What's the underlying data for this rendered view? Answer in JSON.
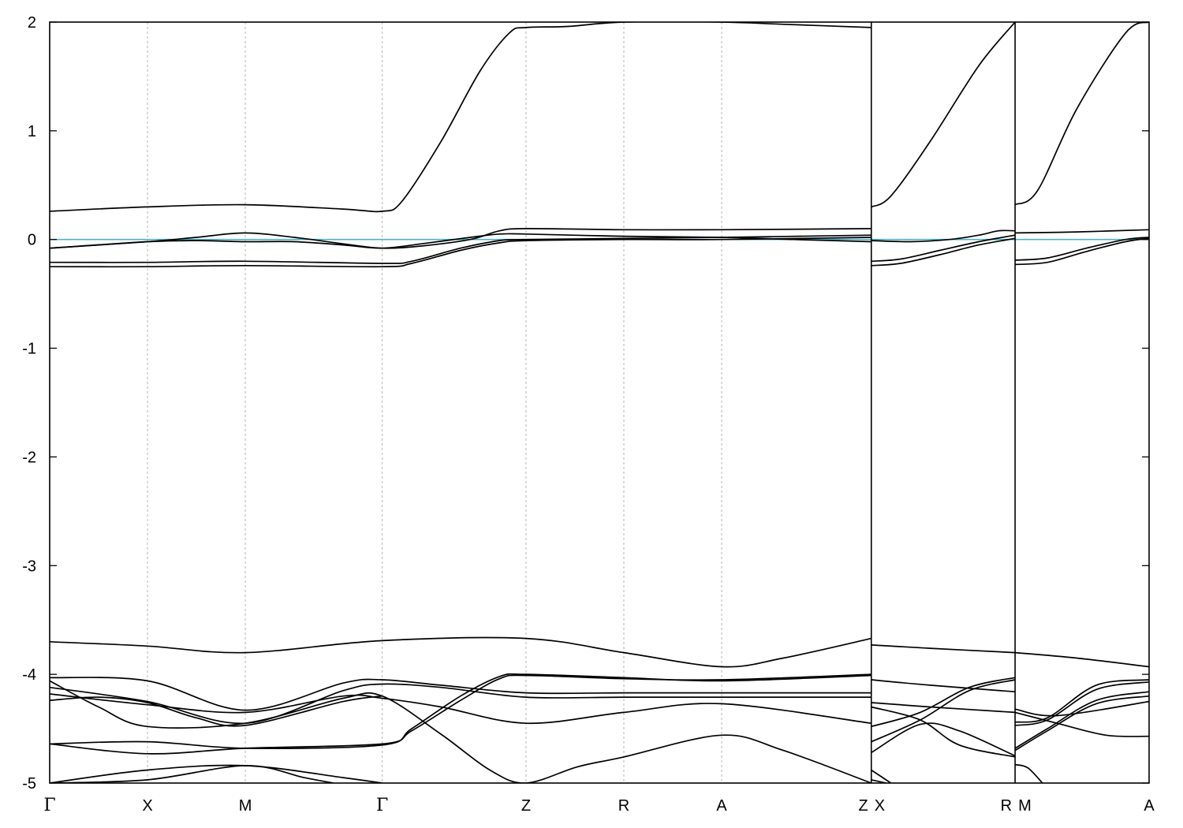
{
  "chart_data": {
    "type": "line",
    "title": "",
    "xlabel": "",
    "ylabel": "",
    "ylim": [
      -5,
      2
    ],
    "yticks": [
      -5,
      -4,
      -3,
      -2,
      -1,
      0,
      1,
      2
    ],
    "xlim": [
      0,
      11.24
    ],
    "grid": "vertical dashed lines at high-symmetry points",
    "fermi_level": {
      "value": 0,
      "color": "#4fb0c6"
    },
    "band_color": "#000000",
    "segment_breaks": [
      8.4,
      9.87
    ],
    "kpoints": [
      {
        "x": 0,
        "label": "Γ"
      },
      {
        "x": 1.0,
        "label": "X"
      },
      {
        "x": 2.0,
        "label": "M"
      },
      {
        "x": 3.4,
        "label": "Γ"
      },
      {
        "x": 4.87,
        "label": "Z"
      },
      {
        "x": 5.87,
        "label": "R"
      },
      {
        "x": 6.87,
        "label": "A"
      },
      {
        "x": 8.4,
        "label": "Z"
      },
      {
        "x": 8.4,
        "label": "X"
      },
      {
        "x": 9.87,
        "label": "R"
      },
      {
        "x": 9.87,
        "label": "M"
      },
      {
        "x": 11.24,
        "label": "A"
      }
    ],
    "series": [
      {
        "points": [
          [
            0,
            0.26
          ],
          [
            1,
            0.3
          ],
          [
            2,
            0.32
          ],
          [
            3.0,
            0.28
          ],
          [
            3.4,
            0.26
          ],
          [
            3.6,
            0.35
          ],
          [
            4.0,
            0.9
          ],
          [
            4.4,
            1.55
          ],
          [
            4.7,
            1.9
          ],
          [
            4.87,
            1.95
          ],
          [
            5.3,
            1.96
          ],
          [
            5.87,
            2.0
          ],
          [
            6.87,
            2.0
          ],
          [
            7.5,
            1.98
          ],
          [
            8.4,
            1.95
          ]
        ]
      },
      {
        "points": [
          [
            8.4,
            0.3
          ],
          [
            8.6,
            0.4
          ],
          [
            9.0,
            0.9
          ],
          [
            9.5,
            1.6
          ],
          [
            9.87,
            2.0
          ]
        ]
      },
      {
        "points": [
          [
            9.87,
            0.32
          ],
          [
            10.1,
            0.45
          ],
          [
            10.5,
            1.2
          ],
          [
            11.0,
            1.9
          ],
          [
            11.24,
            2.0
          ]
        ]
      },
      {
        "points": [
          [
            0,
            -0.08
          ],
          [
            1,
            -0.02
          ],
          [
            1.5,
            0.02
          ],
          [
            2.0,
            0.06
          ],
          [
            2.5,
            0.02
          ],
          [
            3.0,
            -0.04
          ],
          [
            3.4,
            -0.08
          ],
          [
            3.8,
            -0.06
          ],
          [
            4.3,
            0.0
          ],
          [
            4.6,
            0.08
          ],
          [
            4.87,
            0.1
          ],
          [
            5.87,
            0.09
          ],
          [
            6.87,
            0.09
          ],
          [
            8.4,
            0.1
          ]
        ]
      },
      {
        "points": [
          [
            0,
            -0.08
          ],
          [
            1,
            -0.02
          ],
          [
            1.5,
            -0.01
          ],
          [
            2.0,
            -0.02
          ],
          [
            2.5,
            -0.02
          ],
          [
            3.0,
            -0.05
          ],
          [
            3.4,
            -0.08
          ],
          [
            3.8,
            -0.04
          ],
          [
            4.3,
            0.02
          ],
          [
            4.6,
            0.05
          ],
          [
            4.87,
            0.05
          ],
          [
            5.87,
            0.03
          ],
          [
            6.87,
            0.02
          ],
          [
            7.6,
            0.0
          ],
          [
            8.4,
            -0.02
          ]
        ]
      },
      {
        "points": [
          [
            0,
            -0.21
          ],
          [
            1,
            -0.21
          ],
          [
            2,
            -0.2
          ],
          [
            3.4,
            -0.22
          ],
          [
            3.7,
            -0.2
          ],
          [
            4.2,
            -0.08
          ],
          [
            4.6,
            -0.01
          ],
          [
            4.87,
            0.0
          ],
          [
            5.87,
            0.01
          ],
          [
            6.87,
            0.02
          ],
          [
            8.4,
            0.04
          ]
        ]
      },
      {
        "points": [
          [
            0,
            -0.25
          ],
          [
            1,
            -0.25
          ],
          [
            2,
            -0.24
          ],
          [
            3.4,
            -0.25
          ],
          [
            3.7,
            -0.22
          ],
          [
            4.2,
            -0.1
          ],
          [
            4.6,
            -0.03
          ],
          [
            4.87,
            -0.01
          ],
          [
            5.87,
            0.0
          ],
          [
            6.87,
            0.0
          ],
          [
            8.4,
            0.02
          ]
        ]
      },
      {
        "points": [
          [
            8.4,
            -0.01
          ],
          [
            8.8,
            -0.02
          ],
          [
            9.2,
            0.0
          ],
          [
            9.5,
            0.04
          ],
          [
            9.7,
            0.08
          ],
          [
            9.87,
            0.08
          ]
        ]
      },
      {
        "points": [
          [
            8.4,
            -0.2
          ],
          [
            8.7,
            -0.18
          ],
          [
            9.1,
            -0.1
          ],
          [
            9.5,
            -0.02
          ],
          [
            9.87,
            0.04
          ]
        ]
      },
      {
        "points": [
          [
            8.4,
            -0.24
          ],
          [
            8.7,
            -0.22
          ],
          [
            9.1,
            -0.14
          ],
          [
            9.5,
            -0.05
          ],
          [
            9.87,
            0.01
          ]
        ]
      },
      {
        "points": [
          [
            9.87,
            0.06
          ],
          [
            10.5,
            0.07
          ],
          [
            11.24,
            0.09
          ]
        ]
      },
      {
        "points": [
          [
            9.87,
            -0.19
          ],
          [
            10.2,
            -0.17
          ],
          [
            10.6,
            -0.08
          ],
          [
            11.0,
            0.0
          ],
          [
            11.24,
            0.02
          ]
        ]
      },
      {
        "points": [
          [
            9.87,
            -0.23
          ],
          [
            10.2,
            -0.21
          ],
          [
            10.6,
            -0.11
          ],
          [
            11.0,
            -0.02
          ],
          [
            11.24,
            0.01
          ]
        ]
      },
      {
        "points": [
          [
            0,
            -3.7
          ],
          [
            1,
            -3.74
          ],
          [
            2,
            -3.8
          ],
          [
            3.4,
            -3.69
          ],
          [
            4.87,
            -3.67
          ],
          [
            5.87,
            -3.8
          ],
          [
            6.87,
            -3.93
          ],
          [
            7.5,
            -3.85
          ],
          [
            8.4,
            -3.67
          ]
        ]
      },
      {
        "points": [
          [
            8.4,
            -3.73
          ],
          [
            9.0,
            -3.76
          ],
          [
            9.87,
            -3.8
          ]
        ]
      },
      {
        "points": [
          [
            9.87,
            -3.8
          ],
          [
            10.5,
            -3.85
          ],
          [
            11.24,
            -3.93
          ]
        ]
      },
      {
        "points": [
          [
            0,
            -4.03
          ],
          [
            1,
            -4.06
          ],
          [
            2,
            -4.33
          ],
          [
            3.0,
            -4.08
          ],
          [
            3.4,
            -4.05
          ],
          [
            4.0,
            -4.1
          ],
          [
            4.87,
            -4.17
          ],
          [
            5.87,
            -4.17
          ],
          [
            6.87,
            -4.17
          ],
          [
            8.4,
            -4.17
          ]
        ]
      },
      {
        "points": [
          [
            0,
            -4.12
          ],
          [
            1,
            -4.25
          ],
          [
            2,
            -4.45
          ],
          [
            3.0,
            -4.15
          ],
          [
            3.4,
            -4.09
          ],
          [
            4.0,
            -4.12
          ],
          [
            4.87,
            -4.21
          ],
          [
            5.87,
            -4.21
          ],
          [
            6.87,
            -4.21
          ],
          [
            8.4,
            -4.21
          ]
        ]
      },
      {
        "points": [
          [
            0,
            -4.18
          ],
          [
            1,
            -4.28
          ],
          [
            2,
            -4.35
          ],
          [
            3.0,
            -4.2
          ],
          [
            3.4,
            -4.22
          ],
          [
            4.0,
            -4.3
          ],
          [
            4.87,
            -4.45
          ],
          [
            5.87,
            -4.35
          ],
          [
            6.87,
            -4.27
          ],
          [
            8.4,
            -4.45
          ]
        ]
      },
      {
        "points": [
          [
            0,
            -4.06
          ],
          [
            0.5,
            -4.3
          ],
          [
            1,
            -4.48
          ],
          [
            2,
            -4.45
          ],
          [
            3.0,
            -4.22
          ],
          [
            3.4,
            -4.2
          ],
          [
            4.0,
            -4.55
          ],
          [
            4.5,
            -4.88
          ],
          [
            4.87,
            -5.0
          ],
          [
            5.4,
            -4.85
          ],
          [
            5.87,
            -4.76
          ],
          [
            6.87,
            -4.56
          ],
          [
            7.5,
            -4.7
          ],
          [
            8.4,
            -5.0
          ]
        ]
      },
      {
        "points": [
          [
            0,
            -4.64
          ],
          [
            1,
            -4.62
          ],
          [
            2,
            -4.68
          ],
          [
            3.4,
            -4.65
          ],
          [
            3.7,
            -4.5
          ],
          [
            4.2,
            -4.2
          ],
          [
            4.6,
            -4.02
          ],
          [
            4.87,
            -4.0
          ],
          [
            5.87,
            -4.03
          ],
          [
            6.87,
            -4.06
          ],
          [
            8.4,
            -4.01
          ]
        ]
      },
      {
        "points": [
          [
            0,
            -4.64
          ],
          [
            1,
            -4.73
          ],
          [
            2,
            -4.68
          ],
          [
            3.4,
            -4.64
          ],
          [
            3.7,
            -4.52
          ],
          [
            4.2,
            -4.24
          ],
          [
            4.6,
            -4.04
          ],
          [
            4.87,
            -4.01
          ],
          [
            5.87,
            -4.04
          ],
          [
            6.87,
            -4.05
          ],
          [
            8.4,
            -4.0
          ]
        ]
      },
      {
        "points": [
          [
            0,
            -4.24
          ],
          [
            0.5,
            -4.21
          ],
          [
            1,
            -4.26
          ],
          [
            1.5,
            -4.4
          ],
          [
            2,
            -4.47
          ],
          [
            3.0,
            -4.25
          ],
          [
            3.4,
            -4.2
          ]
        ]
      },
      {
        "points": [
          [
            0,
            -5.0
          ],
          [
            1,
            -4.88
          ],
          [
            2,
            -4.84
          ],
          [
            3.0,
            -4.95
          ],
          [
            3.4,
            -5.0
          ]
        ]
      },
      {
        "points": [
          [
            0,
            -5.0
          ],
          [
            1,
            -4.97
          ],
          [
            2,
            -4.84
          ],
          [
            2.6,
            -4.95
          ],
          [
            2.9,
            -5.0
          ]
        ]
      },
      {
        "points": [
          [
            8.4,
            -4.05
          ],
          [
            9.0,
            -4.1
          ],
          [
            9.87,
            -4.16
          ]
        ]
      },
      {
        "points": [
          [
            8.4,
            -4.26
          ],
          [
            9.0,
            -4.3
          ],
          [
            9.87,
            -4.35
          ]
        ]
      },
      {
        "points": [
          [
            8.4,
            -4.48
          ],
          [
            8.9,
            -4.35
          ],
          [
            9.4,
            -4.12
          ],
          [
            9.87,
            -4.03
          ]
        ]
      },
      {
        "points": [
          [
            8.4,
            -4.62
          ],
          [
            8.9,
            -4.42
          ],
          [
            9.4,
            -4.15
          ],
          [
            9.87,
            -4.05
          ]
        ]
      },
      {
        "points": [
          [
            8.4,
            -4.3
          ],
          [
            8.9,
            -4.42
          ],
          [
            9.3,
            -4.65
          ],
          [
            9.87,
            -4.76
          ]
        ]
      },
      {
        "points": [
          [
            8.4,
            -4.72
          ],
          [
            8.9,
            -4.46
          ],
          [
            9.3,
            -4.52
          ],
          [
            9.87,
            -4.75
          ]
        ]
      },
      {
        "points": [
          [
            8.4,
            -4.88
          ],
          [
            8.6,
            -5.0
          ]
        ]
      },
      {
        "points": [
          [
            8.4,
            -4.97
          ],
          [
            8.55,
            -5.0
          ]
        ]
      },
      {
        "points": [
          [
            9.87,
            -4.32
          ],
          [
            10.3,
            -4.38
          ],
          [
            11.24,
            -4.25
          ]
        ]
      },
      {
        "points": [
          [
            9.87,
            -4.44
          ],
          [
            10.2,
            -4.4
          ],
          [
            10.7,
            -4.1
          ],
          [
            11.24,
            -4.05
          ]
        ]
      },
      {
        "points": [
          [
            9.87,
            -4.47
          ],
          [
            10.2,
            -4.42
          ],
          [
            10.7,
            -4.14
          ],
          [
            11.24,
            -4.07
          ]
        ]
      },
      {
        "points": [
          [
            9.87,
            -4.68
          ],
          [
            10.2,
            -4.5
          ],
          [
            10.7,
            -4.24
          ],
          [
            11.24,
            -4.16
          ]
        ]
      },
      {
        "points": [
          [
            9.87,
            -4.7
          ],
          [
            10.2,
            -4.52
          ],
          [
            10.7,
            -4.27
          ],
          [
            11.24,
            -4.2
          ]
        ]
      },
      {
        "points": [
          [
            9.87,
            -4.35
          ],
          [
            10.3,
            -4.45
          ],
          [
            10.8,
            -4.56
          ],
          [
            11.24,
            -4.57
          ]
        ]
      },
      {
        "points": [
          [
            9.87,
            -4.83
          ],
          [
            10.0,
            -4.86
          ],
          [
            10.15,
            -5.0
          ]
        ]
      }
    ]
  }
}
